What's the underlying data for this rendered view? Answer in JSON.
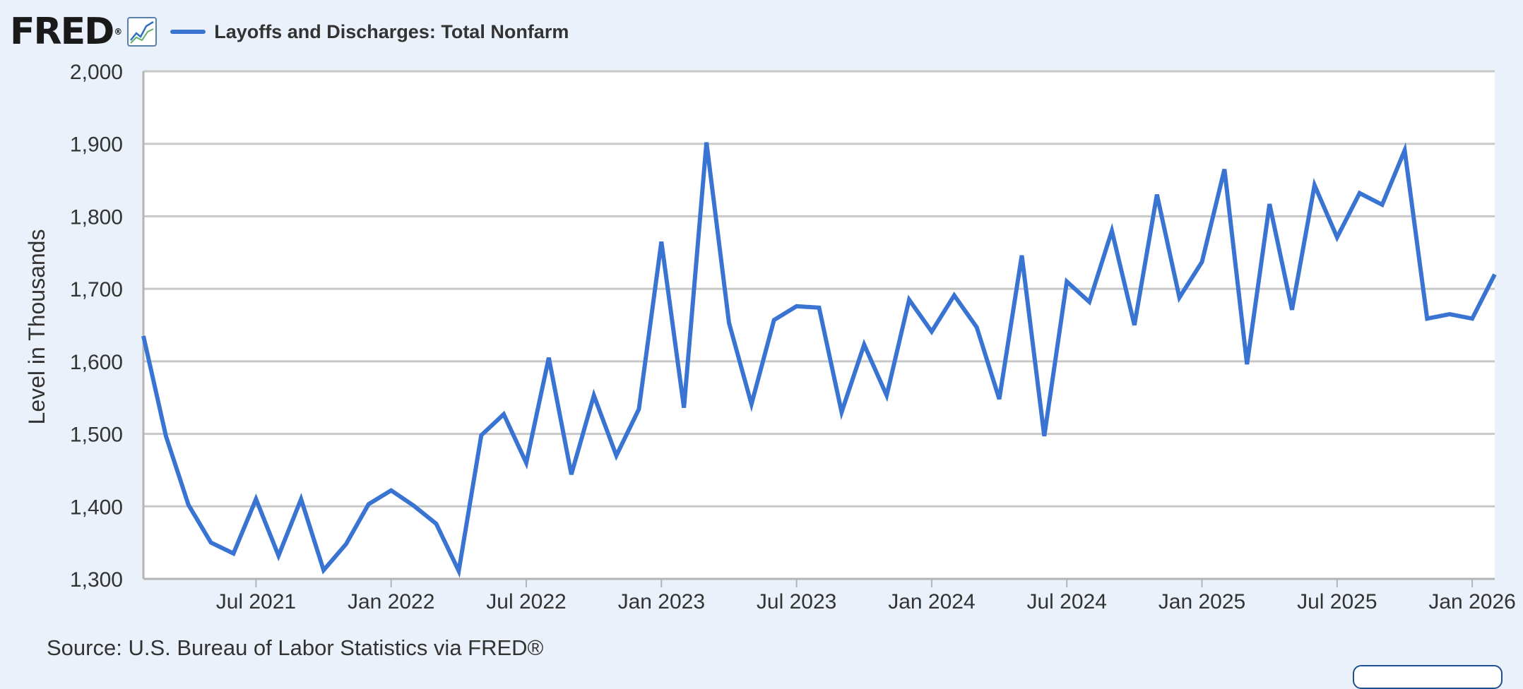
{
  "header": {
    "logo_text": "FRED",
    "series_title": "Layoffs and Discharges: Total Nonfarm"
  },
  "source": "Source: U.S. Bureau of Labor Statistics via FRED®",
  "colors": {
    "series": "#3a74d2",
    "background": "#eaf1fa",
    "plot": "#ffffff",
    "grid": "#c8c8c8"
  },
  "icons": [
    "graph-icon"
  ],
  "chart_data": {
    "type": "line",
    "title": "Layoffs and Discharges: Total Nonfarm",
    "ylabel": "Level in Thousands",
    "xlabel": "",
    "ylim": [
      1300,
      2000
    ],
    "yticks": [
      1300,
      1400,
      1500,
      1600,
      1700,
      1800,
      1900,
      2000
    ],
    "ytick_labels": [
      "1,300",
      "1,400",
      "1,500",
      "1,600",
      "1,700",
      "1,800",
      "1,900",
      "2,000"
    ],
    "xlim": [
      "2021-02",
      "2026-02"
    ],
    "xticks": [
      "2021-07",
      "2022-01",
      "2022-07",
      "2023-01",
      "2023-07",
      "2024-01",
      "2024-07",
      "2025-01",
      "2025-07",
      "2026-01"
    ],
    "xtick_labels": [
      "Jul 2021",
      "Jan 2022",
      "Jul 2022",
      "Jan 2023",
      "Jul 2023",
      "Jan 2024",
      "Jul 2024",
      "Jan 2025",
      "Jul 2025",
      "Jan 2026"
    ],
    "grid": true,
    "series": [
      {
        "name": "Layoffs and Discharges: Total Nonfarm",
        "x": [
          "2021-02",
          "2021-03",
          "2021-04",
          "2021-05",
          "2021-06",
          "2021-07",
          "2021-08",
          "2021-09",
          "2021-10",
          "2021-11",
          "2021-12",
          "2022-01",
          "2022-02",
          "2022-03",
          "2022-04",
          "2022-05",
          "2022-06",
          "2022-07",
          "2022-08",
          "2022-09",
          "2022-10",
          "2022-11",
          "2022-12",
          "2023-01",
          "2023-02",
          "2023-03",
          "2023-04",
          "2023-05",
          "2023-06",
          "2023-07",
          "2023-08",
          "2023-09",
          "2023-10",
          "2023-11",
          "2023-12",
          "2024-01",
          "2024-02",
          "2024-03",
          "2024-04",
          "2024-05",
          "2024-06",
          "2024-07",
          "2024-08",
          "2024-09",
          "2024-10",
          "2024-11",
          "2024-12",
          "2025-01",
          "2025-02",
          "2025-03",
          "2025-04",
          "2025-05",
          "2025-06",
          "2025-07",
          "2025-08",
          "2025-09",
          "2025-10",
          "2025-11",
          "2025-12",
          "2026-01",
          "2026-02"
        ],
        "values": [
          1635,
          1497,
          1402,
          1350,
          1335,
          1410,
          1332,
          1410,
          1312,
          1348,
          1403,
          1422,
          1401,
          1376,
          1311,
          1498,
          1527,
          1460,
          1605,
          1444,
          1553,
          1470,
          1534,
          1765,
          1536,
          1902,
          1653,
          1541,
          1657,
          1676,
          1674,
          1530,
          1623,
          1553,
          1685,
          1641,
          1691,
          1647,
          1548,
          1746,
          1497,
          1710,
          1682,
          1780,
          1650,
          1830,
          1688,
          1737,
          1865,
          1596,
          1817,
          1671,
          1843,
          1771,
          1832,
          1816,
          1891,
          1659,
          1665,
          1659,
          1720
        ]
      }
    ]
  }
}
